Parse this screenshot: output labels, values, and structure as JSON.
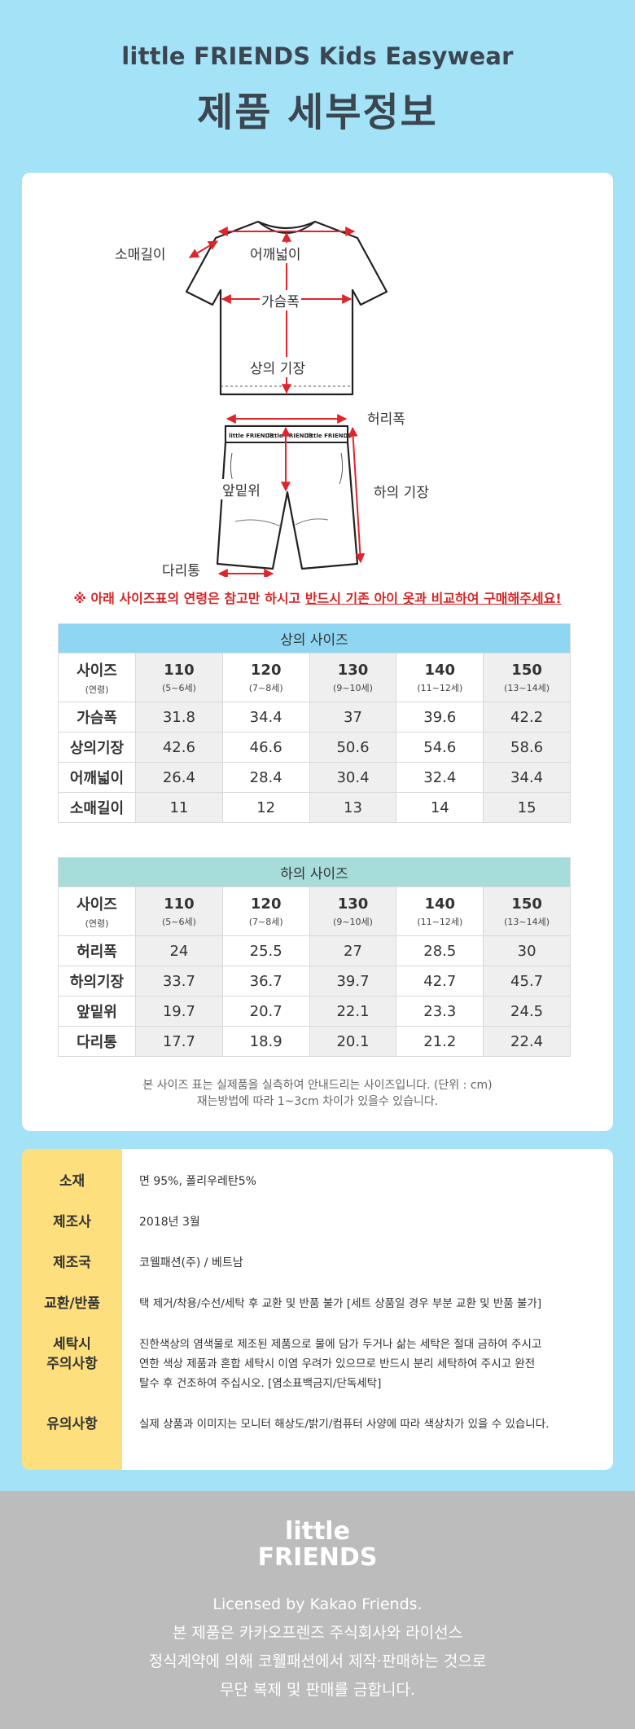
{
  "header": {
    "brand": "little FRIENDS Kids Easywear",
    "title": "제품 세부정보"
  },
  "diagram": {
    "labels": {
      "sleeve": "소매길이",
      "shoulder": "어깨넓이",
      "chest": "가슴폭",
      "top_length": "상의 기장",
      "waist": "허리폭",
      "rise": "앞밑위",
      "bottom_length": "하의 기장",
      "leg": "다리통"
    },
    "band_text": "little FRIENDS"
  },
  "notice": {
    "part1": "※ 아래 사이즈표의 연령은 참고만 하시고 ",
    "part2": "반드시 기존 아이 옷과 비교하여 구매해주세요!"
  },
  "top_table": {
    "caption": "상의 사이즈",
    "head_label": "사이즈",
    "head_sub": "(연령)",
    "sizes": [
      {
        "size": "110",
        "age": "(5~6세)"
      },
      {
        "size": "120",
        "age": "(7~8세)"
      },
      {
        "size": "130",
        "age": "(9~10세)"
      },
      {
        "size": "140",
        "age": "(11~12세)"
      },
      {
        "size": "150",
        "age": "(13~14세)"
      }
    ],
    "rows": [
      {
        "label": "가슴폭",
        "values": [
          "31.8",
          "34.4",
          "37",
          "39.6",
          "42.2"
        ]
      },
      {
        "label": "상의기장",
        "values": [
          "42.6",
          "46.6",
          "50.6",
          "54.6",
          "58.6"
        ]
      },
      {
        "label": "어깨넓이",
        "values": [
          "26.4",
          "28.4",
          "30.4",
          "32.4",
          "34.4"
        ]
      },
      {
        "label": "소매길이",
        "values": [
          "11",
          "12",
          "13",
          "14",
          "15"
        ]
      }
    ]
  },
  "bottom_table": {
    "caption": "하의 사이즈",
    "head_label": "사이즈",
    "head_sub": "(연령)",
    "sizes": [
      {
        "size": "110",
        "age": "(5~6세)"
      },
      {
        "size": "120",
        "age": "(7~8세)"
      },
      {
        "size": "130",
        "age": "(9~10세)"
      },
      {
        "size": "140",
        "age": "(11~12세)"
      },
      {
        "size": "150",
        "age": "(13~14세)"
      }
    ],
    "rows": [
      {
        "label": "허리폭",
        "values": [
          "24",
          "25.5",
          "27",
          "28.5",
          "30"
        ]
      },
      {
        "label": "하의기장",
        "values": [
          "33.7",
          "36.7",
          "39.7",
          "42.7",
          "45.7"
        ]
      },
      {
        "label": "앞밑위",
        "values": [
          "19.7",
          "20.7",
          "22.1",
          "23.3",
          "24.5"
        ]
      },
      {
        "label": "다리통",
        "values": [
          "17.7",
          "18.9",
          "20.1",
          "21.2",
          "22.4"
        ]
      }
    ]
  },
  "table_note": {
    "line1": "본 사이즈 표는 실제품을 실측하여 안내드리는 사이즈입니다. (단위 : cm)",
    "line2": "재는방법에 따라 1~3cm 차이가 있을수 있습니다."
  },
  "info": {
    "material_label": "소재",
    "material": "면 95%, 폴리우레탄5%",
    "date_label": "제조사",
    "date": "2018년 3월",
    "country_label": "제조국",
    "country": "코웰패션(주) / 베트남",
    "exchange_label": "교환/반품",
    "exchange": "택 제거/착용/수선/세탁 후 교환 및 반품 불가 [세트 상품일 경우 부분 교환 및 반품 불가]",
    "wash_label1": "세탁시",
    "wash_label2": "주의사항",
    "wash_line1": "진한색상의 염색물로 제조된 제품으로 물에 담가 두거나 삶는 세탁은 절대 금하여 주시고",
    "wash_line2": "연한 색상 제품과 혼합 세탁시 이염 우려가 있으므로 반드시 분리 세탁하여 주시고 완전",
    "wash_line3": "탈수 후 건조하여 주십시오. [염소표백금지/단독세탁]",
    "caution_label": "유의사항",
    "caution": "실제 상품과 이미지는 모니터 해상도/밝기/컴퓨터 사양에 따라 색상차가 있을 수 있습니다."
  },
  "footer": {
    "logo_line1": "little",
    "logo_line2": "FRIENDS",
    "line1": "Licensed by Kakao Friends.",
    "line2": "본 제품은 카카오프렌즈 주식회사와 라이선스",
    "line3": "정식계약에 의해 코웰패션에서 제작·판매하는 것으로",
    "line4": "무단 복제 및 판매를 금합니다."
  }
}
